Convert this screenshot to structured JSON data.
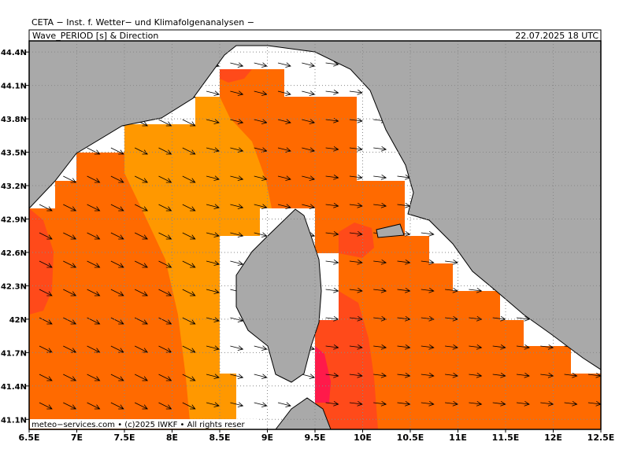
{
  "header": {
    "institute": "CETA − Inst. f. Wetter− und Klimafolgenanalysen −",
    "product": "Wave_PERIOD [s] & Direction",
    "valid_time": "22.07.2025 18 UTC"
  },
  "map": {
    "lonlim": [
      6.5,
      12.5
    ],
    "latlim": [
      41.01,
      44.5
    ],
    "lon_ticks": [
      {
        "value": 6.5,
        "label": "6.5E"
      },
      {
        "value": 7,
        "label": "7E"
      },
      {
        "value": 7.5,
        "label": "7.5E"
      },
      {
        "value": 8,
        "label": "8E"
      },
      {
        "value": 8.5,
        "label": "8.5E"
      },
      {
        "value": 9,
        "label": "9E"
      },
      {
        "value": 9.5,
        "label": "9.5E"
      },
      {
        "value": 10,
        "label": "10E"
      },
      {
        "value": 10.5,
        "label": "10.5E"
      },
      {
        "value": 11,
        "label": "11E"
      },
      {
        "value": 11.5,
        "label": "11.5E"
      },
      {
        "value": 12,
        "label": "12E"
      },
      {
        "value": 12.5,
        "label": "12.5E"
      }
    ],
    "lat_ticks": [
      {
        "value": 44.4,
        "label": "44.4N"
      },
      {
        "value": 44.1,
        "label": "44.1N"
      },
      {
        "value": 43.8,
        "label": "43.8N"
      },
      {
        "value": 43.5,
        "label": "43.5N"
      },
      {
        "value": 43.2,
        "label": "43.2N"
      },
      {
        "value": 42.9,
        "label": "42.9N"
      },
      {
        "value": 42.6,
        "label": "42.6N"
      },
      {
        "value": 42.3,
        "label": "42.3N"
      },
      {
        "value": 42,
        "label": "42N"
      },
      {
        "value": 41.7,
        "label": "41.7N"
      },
      {
        "value": 41.4,
        "label": "41.4N"
      },
      {
        "value": 41.1,
        "label": "41.1N"
      }
    ]
  },
  "credit": "meteo−services.com • (c)2025 IWKF • All rights reser"
}
